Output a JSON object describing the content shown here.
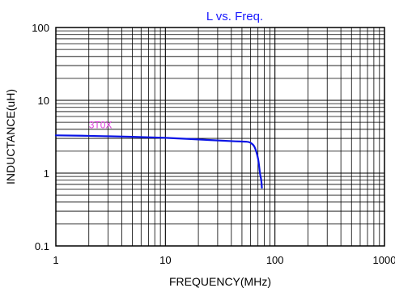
{
  "chart_data": {
    "type": "line",
    "title": "L vs. Freq.",
    "xlabel": "FREQUENCY(MHz)",
    "ylabel": "INDUCTANCE(uH)",
    "x_scale": "log",
    "y_scale": "log",
    "xlim": [
      1,
      1000
    ],
    "ylim": [
      0.1,
      100
    ],
    "grid": true,
    "x_ticks": [
      "1",
      "10",
      "100",
      "1000"
    ],
    "y_ticks": [
      "0.1",
      "1",
      "10",
      "100"
    ],
    "series": [
      {
        "name": "3T0X",
        "color": "#0a14e6",
        "label_color": "#e040e0",
        "points": [
          [
            1,
            3.3
          ],
          [
            2,
            3.25
          ],
          [
            5,
            3.15
          ],
          [
            10,
            3.05
          ],
          [
            20,
            2.9
          ],
          [
            40,
            2.75
          ],
          [
            55,
            2.7
          ],
          [
            60,
            2.6
          ],
          [
            65,
            2.3
          ],
          [
            70,
            1.6
          ],
          [
            73,
            1.0
          ],
          [
            75,
            0.8
          ],
          [
            76,
            0.63
          ]
        ]
      }
    ]
  }
}
